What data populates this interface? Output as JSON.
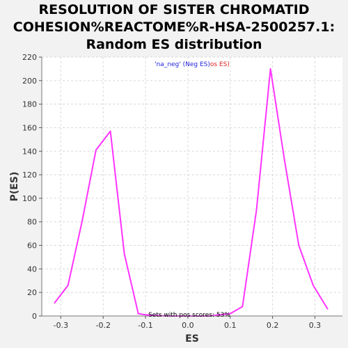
{
  "chart_data": {
    "type": "line",
    "title_lines": [
      "RESOLUTION OF SISTER CHROMATID",
      "COHESION%REACTOME%R-HSA-2500257.1:",
      "Random ES distribution"
    ],
    "xlabel": "ES",
    "ylabel": "P(ES)",
    "xlim": [
      -0.345,
      0.365
    ],
    "ylim": [
      0,
      220
    ],
    "xticks": [
      -0.3,
      -0.2,
      -0.1,
      0.0,
      0.1,
      0.2,
      0.3
    ],
    "xtick_labels": [
      "-0.3",
      "-0.2",
      "-0.1",
      "0.0",
      "0.1",
      "0.2",
      "0.3"
    ],
    "yticks": [
      0,
      20,
      40,
      60,
      80,
      100,
      120,
      140,
      160,
      180,
      200,
      220
    ],
    "ytick_labels": [
      "0",
      "20",
      "40",
      "60",
      "80",
      "100",
      "120",
      "140",
      "160",
      "180",
      "200",
      "220"
    ],
    "grid": true,
    "legend": {
      "placement": "top-center",
      "open": "'na_neg' (",
      "neg_label": "Neg ES",
      "middle": ")",
      "pos_label": "os ES)"
    },
    "annotation": "Sets with pos scores: 53%",
    "series": [
      {
        "color": "#ff33ff",
        "points": [
          [
            -0.315,
            11
          ],
          [
            -0.283,
            26
          ],
          [
            -0.25,
            80
          ],
          [
            -0.217,
            141
          ],
          [
            -0.183,
            157
          ],
          [
            -0.15,
            53
          ],
          [
            -0.117,
            2
          ],
          [
            -0.1,
            1
          ],
          [
            -0.05,
            0
          ],
          [
            0.0,
            0
          ],
          [
            0.05,
            0
          ],
          [
            0.1,
            2
          ],
          [
            0.129,
            8
          ],
          [
            0.162,
            90
          ],
          [
            0.195,
            210
          ],
          [
            0.228,
            133
          ],
          [
            0.262,
            60
          ],
          [
            0.296,
            26
          ],
          [
            0.33,
            6
          ]
        ]
      }
    ],
    "colors": {
      "neg_label": "#2222dd",
      "pos_label": "#dd2222",
      "grid": "#d8d8d8"
    }
  }
}
